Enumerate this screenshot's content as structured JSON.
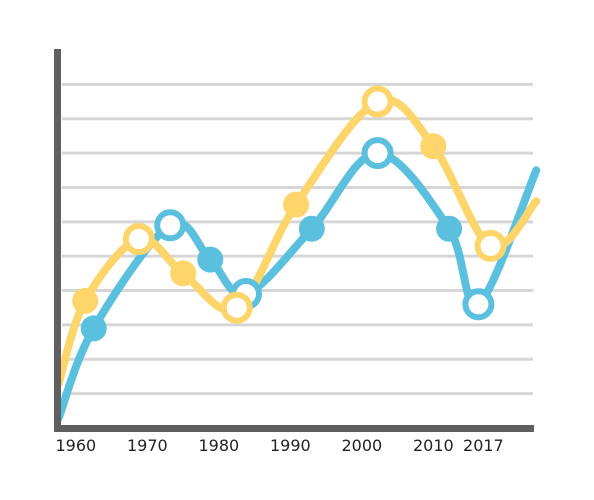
{
  "chart_data": {
    "type": "line",
    "title": "",
    "xlabel": "",
    "ylabel": "",
    "grid": true,
    "xlim": [
      1957.5,
      2024.5
    ],
    "ylim": [
      -1,
      10
    ],
    "x_ticks": [
      1960,
      1970,
      1980,
      1990,
      2000,
      2010,
      2017
    ],
    "colors": {
      "axis": "#5f5f5f",
      "grid": "#d6d6d6"
    },
    "series": [
      {
        "color": "#5bc0de",
        "points": [
          {
            "x": 1957.6,
            "y": -0.7
          },
          {
            "x": 1962.5,
            "y": 1.9
          },
          {
            "x": 1973.2,
            "y": 4.9
          },
          {
            "x": 1978.8,
            "y": 3.9
          },
          {
            "x": 1983.8,
            "y": 2.9
          },
          {
            "x": 1993.0,
            "y": 4.8
          },
          {
            "x": 2002.2,
            "y": 7.0
          },
          {
            "x": 2012.2,
            "y": 4.8
          },
          {
            "x": 2016.3,
            "y": 2.6
          },
          {
            "x": 2024.4,
            "y": 6.5
          }
        ],
        "hollow_markers": [
          2,
          4,
          6,
          8
        ],
        "filled_markers": [
          1,
          3,
          5,
          7
        ]
      },
      {
        "color": "#fdd56a",
        "points": [
          {
            "x": 1957.6,
            "y": 0.3
          },
          {
            "x": 1961.3,
            "y": 2.7
          },
          {
            "x": 1968.8,
            "y": 4.5
          },
          {
            "x": 1975.0,
            "y": 3.5
          },
          {
            "x": 1982.5,
            "y": 2.5
          },
          {
            "x": 1990.8,
            "y": 5.5
          },
          {
            "x": 2002.2,
            "y": 8.5
          },
          {
            "x": 2010.0,
            "y": 7.2
          },
          {
            "x": 2018.0,
            "y": 4.3
          },
          {
            "x": 2024.4,
            "y": 5.6
          }
        ],
        "hollow_markers": [
          2,
          4,
          6,
          8
        ],
        "filled_markers": [
          1,
          3,
          5,
          7
        ]
      }
    ]
  }
}
